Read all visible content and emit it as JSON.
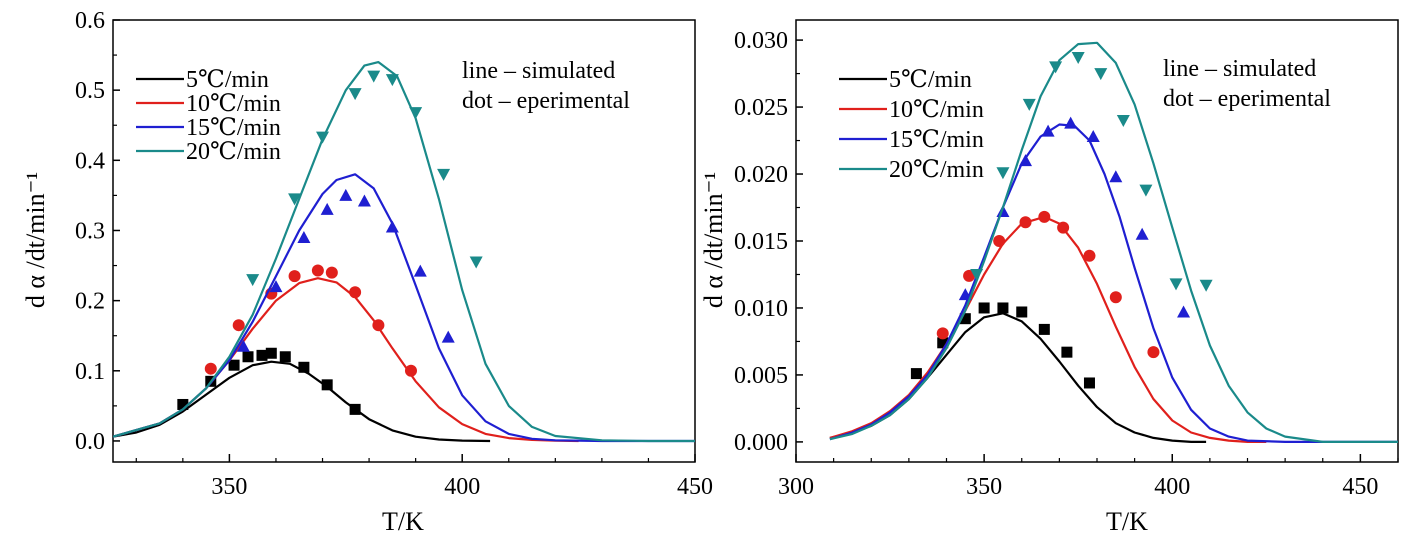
{
  "chart_data": [
    {
      "type": "line",
      "xlabel": "T/K",
      "ylabel": "d α /dt/min⁻¹",
      "xlim": [
        325,
        450
      ],
      "ylim": [
        -0.03,
        0.6
      ],
      "xticks": [
        350,
        400,
        450
      ],
      "yticks": [
        0.0,
        0.1,
        0.2,
        0.3,
        0.4,
        0.5,
        0.6
      ],
      "ytick_labels": [
        "0.0",
        "0.1",
        "0.2",
        "0.3",
        "0.4",
        "0.5",
        "0.6"
      ],
      "legend_position": "top-left",
      "annotations": [
        "line – simulated",
        "dot – eperimental"
      ],
      "series": [
        {
          "name": "5℃/min",
          "color": "#000000",
          "marker": "square",
          "curve_x": [
            325,
            330,
            335,
            340,
            345,
            350,
            355,
            359,
            363,
            367,
            371,
            375,
            380,
            385,
            390,
            395,
            400,
            406
          ],
          "curve_y": [
            0.006,
            0.012,
            0.023,
            0.042,
            0.066,
            0.09,
            0.108,
            0.113,
            0.11,
            0.096,
            0.077,
            0.055,
            0.031,
            0.015,
            0.006,
            0.002,
            0.0005,
            0.0
          ],
          "points_x": [
            340,
            346,
            351,
            354,
            357,
            359,
            362,
            366,
            371,
            377
          ],
          "points_y": [
            0.052,
            0.085,
            0.108,
            0.12,
            0.122,
            0.125,
            0.12,
            0.105,
            0.08,
            0.045
          ]
        },
        {
          "name": "10℃/min",
          "color": "#e0201c",
          "marker": "circle",
          "curve_x": [
            325,
            335,
            340,
            345,
            350,
            355,
            360,
            365,
            369,
            373,
            377,
            381,
            385,
            390,
            395,
            400,
            405,
            410,
            415,
            420,
            425
          ],
          "curve_y": [
            0.006,
            0.025,
            0.045,
            0.075,
            0.115,
            0.16,
            0.2,
            0.225,
            0.232,
            0.226,
            0.205,
            0.172,
            0.132,
            0.085,
            0.048,
            0.024,
            0.01,
            0.004,
            0.0015,
            0.0005,
            0.0
          ],
          "points_x": [
            346,
            352,
            359,
            364,
            369,
            372,
            377,
            382,
            389
          ],
          "points_y": [
            0.103,
            0.165,
            0.21,
            0.235,
            0.243,
            0.24,
            0.212,
            0.165,
            0.1
          ]
        },
        {
          "name": "15℃/min",
          "color": "#1f1fd1",
          "marker": "triangle-up",
          "curve_x": [
            325,
            335,
            340,
            345,
            350,
            355,
            360,
            365,
            370,
            373,
            377,
            381,
            385,
            390,
            395,
            400,
            405,
            410,
            415,
            420,
            430,
            440,
            450
          ],
          "curve_y": [
            0.006,
            0.025,
            0.045,
            0.075,
            0.115,
            0.17,
            0.235,
            0.3,
            0.352,
            0.372,
            0.38,
            0.36,
            0.31,
            0.222,
            0.132,
            0.065,
            0.028,
            0.01,
            0.003,
            0.001,
            0.0,
            0.0,
            0.0
          ],
          "points_x": [
            353,
            360,
            366,
            371,
            375,
            379,
            385,
            391,
            397
          ],
          "points_y": [
            0.135,
            0.22,
            0.29,
            0.33,
            0.35,
            0.342,
            0.305,
            0.242,
            0.148
          ]
        },
        {
          "name": "20℃/min",
          "color": "#1a8a8a",
          "marker": "triangle-down",
          "curve_x": [
            325,
            335,
            340,
            345,
            350,
            355,
            360,
            365,
            370,
            375,
            379,
            382,
            386,
            390,
            395,
            400,
            405,
            410,
            415,
            420,
            430,
            440,
            450
          ],
          "curve_y": [
            0.006,
            0.025,
            0.045,
            0.075,
            0.12,
            0.18,
            0.26,
            0.345,
            0.43,
            0.5,
            0.535,
            0.54,
            0.52,
            0.46,
            0.345,
            0.215,
            0.11,
            0.05,
            0.02,
            0.007,
            0.001,
            0.0,
            0.0
          ],
          "points_x": [
            355,
            364,
            370,
            377,
            381,
            385,
            390,
            396,
            403
          ],
          "points_y": [
            0.23,
            0.345,
            0.433,
            0.495,
            0.52,
            0.515,
            0.468,
            0.38,
            0.255
          ]
        }
      ]
    },
    {
      "type": "line",
      "xlabel": "T/K",
      "ylabel": "d α /dt/min⁻¹",
      "xlim": [
        300,
        460
      ],
      "ylim": [
        -0.0015,
        0.0315
      ],
      "xticks": [
        300,
        350,
        400,
        450
      ],
      "yticks": [
        0.0,
        0.005,
        0.01,
        0.015,
        0.02,
        0.025,
        0.03
      ],
      "ytick_labels": [
        "0.000",
        "0.005",
        "0.010",
        "0.015",
        "0.020",
        "0.025",
        "0.030"
      ],
      "legend_position": "top-left",
      "annotations": [
        "line – simulated",
        "dot – eperimental"
      ],
      "series": [
        {
          "name": "5℃/min",
          "color": "#000000",
          "marker": "square",
          "curve_x": [
            309,
            315,
            320,
            325,
            330,
            335,
            340,
            345,
            350,
            355,
            360,
            365,
            370,
            375,
            380,
            385,
            390,
            395,
            400,
            405,
            409
          ],
          "curve_y": [
            0.0003,
            0.0007,
            0.0012,
            0.002,
            0.0032,
            0.0048,
            0.0065,
            0.0082,
            0.0093,
            0.0096,
            0.009,
            0.0077,
            0.006,
            0.0042,
            0.0026,
            0.0014,
            0.0007,
            0.0003,
            0.0001,
            0.0,
            0.0
          ],
          "points_x": [
            332,
            339,
            345,
            350,
            355,
            360,
            366,
            372,
            378
          ],
          "points_y": [
            0.0051,
            0.0074,
            0.0092,
            0.01,
            0.01,
            0.0097,
            0.0084,
            0.0067,
            0.0044
          ]
        },
        {
          "name": "10℃/min",
          "color": "#e0201c",
          "marker": "circle",
          "curve_x": [
            309,
            315,
            320,
            325,
            330,
            335,
            340,
            345,
            350,
            355,
            360,
            366,
            370,
            375,
            380,
            385,
            390,
            395,
            400,
            405,
            410,
            415,
            420,
            425
          ],
          "curve_y": [
            0.0003,
            0.0008,
            0.0014,
            0.0023,
            0.0035,
            0.0052,
            0.0073,
            0.0098,
            0.0125,
            0.0148,
            0.0163,
            0.0168,
            0.0163,
            0.0145,
            0.0118,
            0.0086,
            0.0056,
            0.0032,
            0.0016,
            0.0007,
            0.0003,
            0.0001,
            0.0,
            0.0
          ],
          "points_x": [
            339,
            346,
            354,
            361,
            366,
            371,
            378,
            385,
            395
          ],
          "points_y": [
            0.0081,
            0.0124,
            0.015,
            0.0164,
            0.0168,
            0.016,
            0.0139,
            0.0108,
            0.0067
          ]
        },
        {
          "name": "15℃/min",
          "color": "#1f1fd1",
          "marker": "triangle-up",
          "curve_x": [
            309,
            315,
            320,
            325,
            330,
            335,
            340,
            345,
            350,
            355,
            360,
            365,
            370,
            374,
            378,
            382,
            386,
            390,
            395,
            400,
            405,
            410,
            415,
            420,
            430,
            440,
            450,
            460
          ],
          "curve_y": [
            0.0002,
            0.0007,
            0.0013,
            0.0022,
            0.0034,
            0.005,
            0.0073,
            0.0102,
            0.0138,
            0.0175,
            0.0208,
            0.0228,
            0.0237,
            0.0236,
            0.0225,
            0.02,
            0.0168,
            0.013,
            0.0085,
            0.0048,
            0.0024,
            0.001,
            0.0004,
            0.0001,
            0.0,
            0.0,
            0.0,
            0.0
          ],
          "points_x": [
            345,
            355,
            361,
            367,
            373,
            379,
            385,
            392,
            403
          ],
          "points_y": [
            0.011,
            0.0172,
            0.021,
            0.0232,
            0.0238,
            0.0228,
            0.0198,
            0.0155,
            0.0097
          ]
        },
        {
          "name": "20℃/min",
          "color": "#1a8a8a",
          "marker": "triangle-down",
          "curve_x": [
            309,
            315,
            320,
            325,
            330,
            335,
            340,
            345,
            350,
            355,
            360,
            365,
            370,
            375,
            380,
            385,
            390,
            395,
            400,
            405,
            410,
            415,
            420,
            425,
            430,
            440,
            450,
            460
          ],
          "curve_y": [
            0.0002,
            0.0006,
            0.0012,
            0.002,
            0.0032,
            0.0048,
            0.007,
            0.0098,
            0.0135,
            0.0175,
            0.0218,
            0.0258,
            0.0285,
            0.0297,
            0.0298,
            0.0283,
            0.0252,
            0.0208,
            0.016,
            0.0113,
            0.0072,
            0.0042,
            0.0022,
            0.001,
            0.0004,
            0.0,
            0.0,
            0.0
          ],
          "points_x": [
            348,
            355,
            362,
            369,
            375,
            381,
            387,
            393,
            401,
            409
          ],
          "points_y": [
            0.0125,
            0.0201,
            0.0252,
            0.028,
            0.0287,
            0.0275,
            0.024,
            0.0188,
            0.0118,
            0.0117
          ]
        }
      ]
    }
  ]
}
